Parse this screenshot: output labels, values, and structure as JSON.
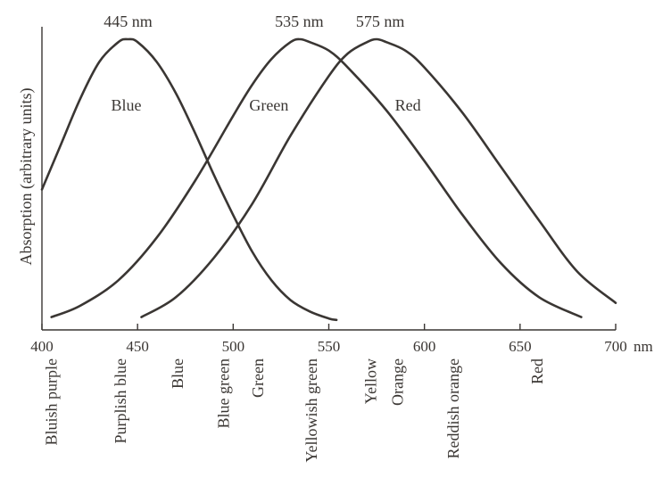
{
  "chart_data": {
    "type": "line",
    "ylabel": "Absorption (arbitrary units)",
    "xunit": "nm",
    "xlim": [
      400,
      700
    ],
    "ylim": [
      0,
      1
    ],
    "grid": false,
    "x_ticks": [
      {
        "value": 400,
        "label": "400"
      },
      {
        "value": 450,
        "label": "450"
      },
      {
        "value": 500,
        "label": "500"
      },
      {
        "value": 550,
        "label": "550"
      },
      {
        "value": 600,
        "label": "600"
      },
      {
        "value": 650,
        "label": "650"
      },
      {
        "value": 700,
        "label": "700"
      }
    ],
    "series": [
      {
        "name": "Blue",
        "peak_label": "445 nm",
        "x": [
          400,
          410,
          420,
          430,
          440,
          445,
          450,
          460,
          470,
          480,
          490,
          500,
          510,
          520,
          530,
          540,
          550,
          554
        ],
        "y": [
          0.47,
          0.63,
          0.79,
          0.92,
          0.99,
          1.0,
          0.99,
          0.92,
          0.81,
          0.67,
          0.52,
          0.38,
          0.25,
          0.15,
          0.08,
          0.04,
          0.015,
          0.01
        ]
      },
      {
        "name": "Green",
        "peak_label": "535 nm",
        "x": [
          405,
          420,
          440,
          460,
          480,
          500,
          510,
          520,
          530,
          535,
          540,
          550,
          560,
          580,
          600,
          620,
          640,
          660,
          682
        ],
        "y": [
          0.02,
          0.06,
          0.15,
          0.3,
          0.5,
          0.73,
          0.84,
          0.93,
          0.99,
          1.0,
          0.99,
          0.96,
          0.9,
          0.75,
          0.57,
          0.38,
          0.21,
          0.09,
          0.02
        ]
      },
      {
        "name": "Red",
        "peak_label": "575 nm",
        "x": [
          452,
          470,
          490,
          510,
          530,
          550,
          560,
          570,
          575,
          580,
          590,
          600,
          620,
          640,
          660,
          680,
          700
        ],
        "y": [
          0.02,
          0.09,
          0.23,
          0.42,
          0.66,
          0.87,
          0.95,
          0.99,
          1.0,
          0.99,
          0.96,
          0.9,
          0.74,
          0.55,
          0.36,
          0.18,
          0.07
        ]
      }
    ],
    "color_bands": [
      {
        "label": "Bluish purple",
        "x": 405
      },
      {
        "label": "Purplish blue",
        "x": 441
      },
      {
        "label": "Blue",
        "x": 471
      },
      {
        "label": "Blue green",
        "x": 495
      },
      {
        "label": "Green",
        "x": 513
      },
      {
        "label": "Yellowish green",
        "x": 541
      },
      {
        "label": "Yellow",
        "x": 572
      },
      {
        "label": "Orange",
        "x": 586
      },
      {
        "label": "Reddish orange",
        "x": 615
      },
      {
        "label": "Red",
        "x": 659
      }
    ]
  },
  "colors": {
    "ink": "#3a3633",
    "background": "#ffffff"
  }
}
